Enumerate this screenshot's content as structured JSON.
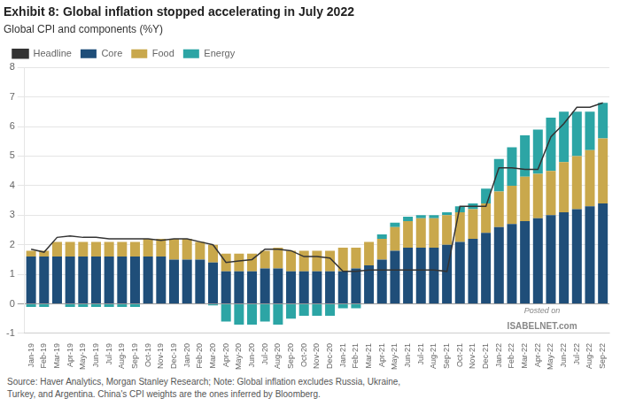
{
  "chart_data": {
    "type": "bar",
    "title": "Exhibit 8: Global inflation stopped accelerating in July 2022",
    "subtitle": "Global CPI and components (%Y)",
    "categories": [
      "Jan-19",
      "Feb-19",
      "Mar-19",
      "Apr-19",
      "May-19",
      "Jun-19",
      "Jul-19",
      "Aug-19",
      "Sep-19",
      "Oct-19",
      "Nov-19",
      "Dec-19",
      "Jan-20",
      "Feb-20",
      "Mar-20",
      "Apr-20",
      "May-20",
      "Jun-20",
      "Jul-20",
      "Aug-20",
      "Sep-20",
      "Oct-20",
      "Nov-20",
      "Dec-20",
      "Jan-21",
      "Feb-21",
      "Mar-21",
      "Apr-21",
      "May-21",
      "Jun-21",
      "Jul-21",
      "Aug-21",
      "Sep-21",
      "Oct-21",
      "Nov-21",
      "Dec-21",
      "Jan-22",
      "Feb-22",
      "Mar-22",
      "Apr-22",
      "May-22",
      "Jun-22",
      "Jul-22",
      "Aug-22",
      "Sep-22"
    ],
    "series": [
      {
        "name": "Core",
        "type": "bar",
        "color": "#1F4E79",
        "values": [
          1.6,
          1.6,
          1.6,
          1.6,
          1.6,
          1.6,
          1.6,
          1.6,
          1.6,
          1.6,
          1.6,
          1.5,
          1.5,
          1.5,
          1.4,
          1.1,
          1.1,
          1.1,
          1.2,
          1.2,
          1.1,
          1.1,
          1.1,
          1.1,
          1.1,
          1.2,
          1.3,
          1.5,
          1.8,
          1.9,
          1.9,
          1.9,
          2.0,
          2.1,
          2.2,
          2.4,
          2.6,
          2.7,
          2.8,
          2.9,
          3.0,
          3.1,
          3.2,
          3.3,
          3.4
        ]
      },
      {
        "name": "Food",
        "type": "bar",
        "color": "#C9A84C",
        "values": [
          0.2,
          0.2,
          0.5,
          0.5,
          0.5,
          0.5,
          0.5,
          0.5,
          0.5,
          0.6,
          0.6,
          0.7,
          0.7,
          0.6,
          0.6,
          0.6,
          0.6,
          0.6,
          0.6,
          0.7,
          0.7,
          0.7,
          0.7,
          0.7,
          0.8,
          0.7,
          0.8,
          0.7,
          0.8,
          0.9,
          1.0,
          1.0,
          1.0,
          1.0,
          1.0,
          1.0,
          1.2,
          1.3,
          1.5,
          1.5,
          1.5,
          1.7,
          1.8,
          1.9,
          2.2
        ]
      },
      {
        "name": "Energy",
        "type": "bar",
        "color": "#2CA5A5",
        "values": [
          -0.1,
          -0.1,
          0.0,
          -0.1,
          -0.1,
          -0.1,
          -0.1,
          -0.1,
          -0.1,
          0.0,
          0.0,
          0.0,
          0.0,
          0.0,
          -0.05,
          -0.6,
          -0.7,
          -0.7,
          -0.6,
          -0.7,
          -0.5,
          -0.4,
          -0.4,
          -0.4,
          -0.15,
          -0.15,
          0.0,
          0.15,
          0.15,
          0.15,
          0.1,
          0.1,
          0.1,
          0.2,
          0.2,
          0.5,
          1.1,
          1.3,
          1.4,
          1.5,
          1.8,
          1.7,
          1.5,
          1.3,
          1.2
        ]
      },
      {
        "name": "Headline",
        "type": "line",
        "color": "#333333",
        "values": [
          1.85,
          1.75,
          2.25,
          2.3,
          2.25,
          2.25,
          2.2,
          2.2,
          2.2,
          2.2,
          2.15,
          2.2,
          2.2,
          2.1,
          2.0,
          1.4,
          1.45,
          1.5,
          1.85,
          1.85,
          1.8,
          1.6,
          1.6,
          1.55,
          1.1,
          1.1,
          1.15,
          1.15,
          1.15,
          1.15,
          1.15,
          1.15,
          1.1,
          3.3,
          3.3,
          3.3,
          4.6,
          4.6,
          4.55,
          4.55,
          5.65,
          6.1,
          6.65,
          6.65,
          6.8
        ]
      }
    ],
    "stacked": true,
    "ylim": [
      -1,
      8
    ],
    "yticks": [
      -1,
      0,
      1,
      2,
      3,
      4,
      5,
      6,
      7,
      8
    ],
    "grid": true,
    "legend": "upper left",
    "annotations": [
      "Posted on",
      "ISABELNET.com"
    ],
    "source": "Source: Haver Analytics, Morgan Stanley Research; Note: Global inflation excludes Russia, Ukraine,\nTurkey, and Argentina. China's CPI weights are the ones inferred by Bloomberg."
  }
}
